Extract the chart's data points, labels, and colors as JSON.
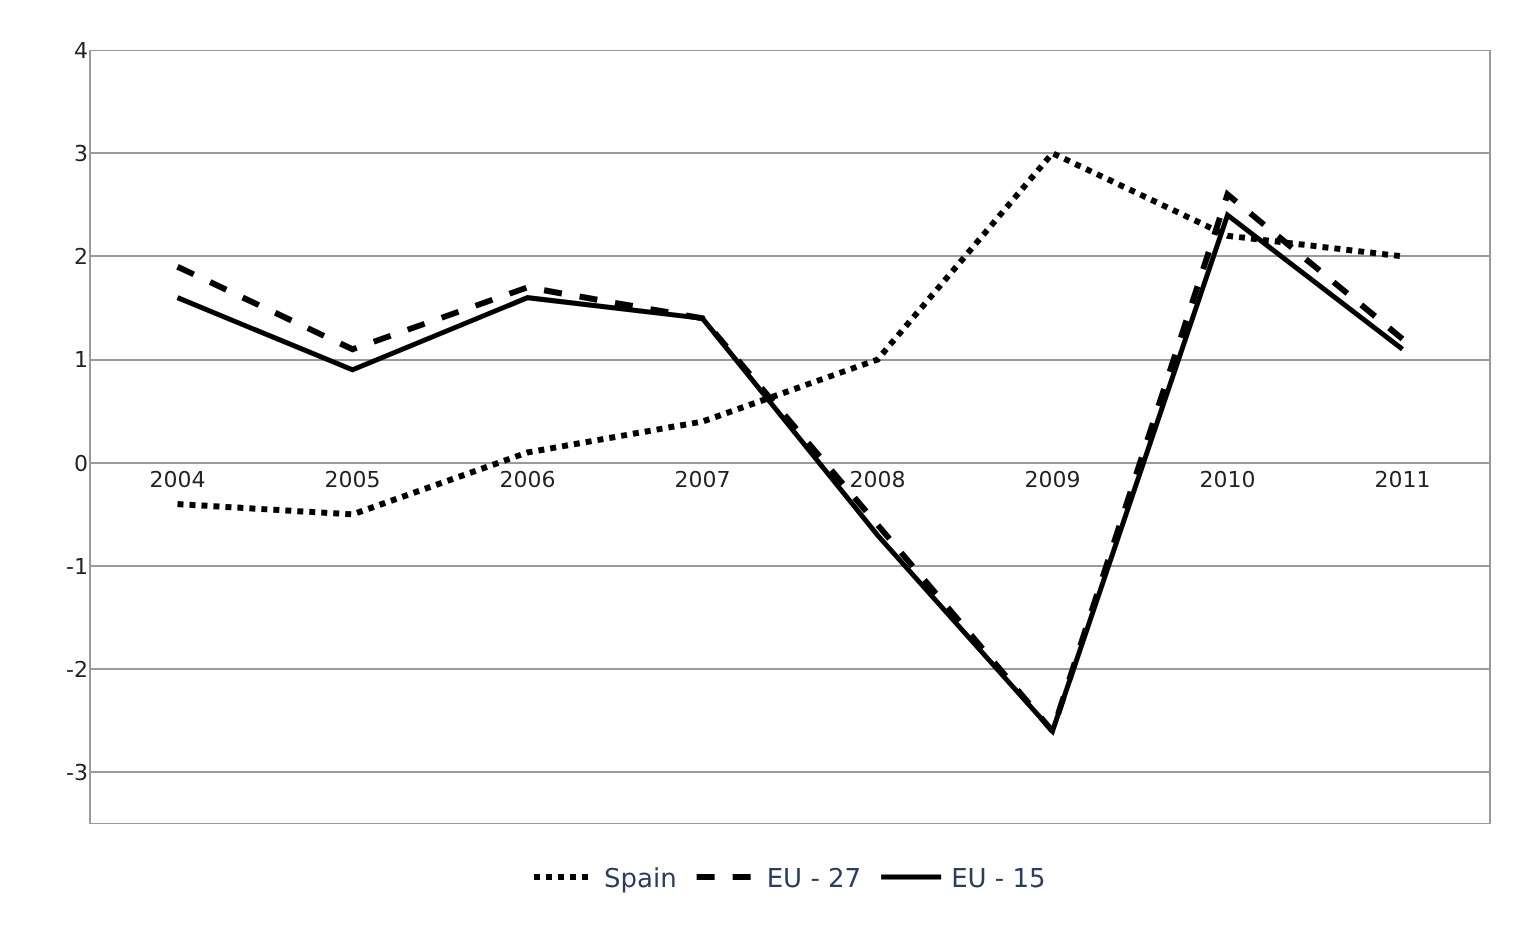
{
  "chart_data": {
    "type": "line",
    "categories": [
      "2004",
      "2005",
      "2006",
      "2007",
      "2008",
      "2009",
      "2010",
      "2011"
    ],
    "series": [
      {
        "name": "Spain",
        "color": "#000000",
        "line_style": "dotted",
        "values": [
          -0.4,
          -0.5,
          0.1,
          0.4,
          1.0,
          3.0,
          2.2,
          2.0
        ]
      },
      {
        "name": "EU - 27",
        "color": "#000000",
        "line_style": "dashed",
        "values": [
          1.9,
          1.1,
          1.7,
          1.4,
          -0.6,
          -2.6,
          2.6,
          1.2
        ]
      },
      {
        "name": "EU - 15",
        "color": "#000000",
        "line_style": "solid",
        "values": [
          1.6,
          0.9,
          1.6,
          1.4,
          -0.7,
          -2.6,
          2.4,
          1.1
        ]
      }
    ],
    "ylim": [
      -3.5,
      4
    ],
    "yticks": [
      -3,
      -2,
      -1,
      0,
      1,
      2,
      3,
      4
    ],
    "grid": "y",
    "legend": "bottom",
    "marker": "none"
  }
}
